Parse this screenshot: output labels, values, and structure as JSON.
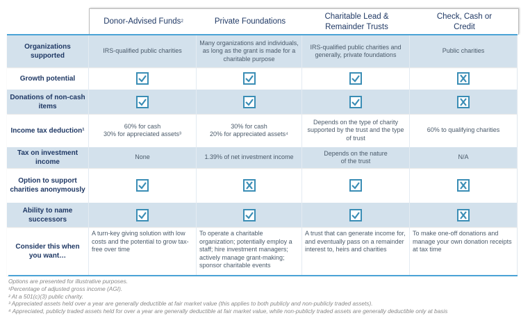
{
  "columns": [
    "Donor-Advised Funds",
    "Private Foundations",
    "Charitable Lead & Remainder Trusts",
    "Check, Cash or Credit"
  ],
  "column_sup": [
    "2",
    "",
    "",
    ""
  ],
  "colors": {
    "accent": "#4aa3d6",
    "shaded_row": "#d3e1ec",
    "label_text": "#1f3864",
    "checkbox": "#3a8db5"
  },
  "rows": [
    {
      "label": "Organizations supported",
      "shaded": true,
      "cells": [
        "IRS-qualified public charities",
        "Many organizations and individuals, as long as the grant is made for a charitable purpose",
        "IRS-qualified public charities and generally, private foundations",
        "Public charities"
      ]
    },
    {
      "label": "Growth potential",
      "shaded": false,
      "cells": [
        "check",
        "check",
        "check",
        "x"
      ]
    },
    {
      "label": "Donations of non-cash items",
      "shaded": true,
      "cells": [
        "check",
        "check",
        "check",
        "x"
      ]
    },
    {
      "label": "Income tax deduction¹",
      "shaded": false,
      "cells": [
        "60% for cash\n30% for appreciated assets³",
        "30% for cash\n20% for appreciated assets⁴",
        "Depends on the type of charity supported by the trust and the type of trust",
        "60% to qualifying charities"
      ]
    },
    {
      "label": "Tax on investment income",
      "shaded": true,
      "cells": [
        "None",
        "1.39% of net investment income",
        "Depends on the nature\nof the trust",
        "N/A"
      ]
    },
    {
      "label": "Option to support charities anonymously",
      "shaded": false,
      "cells": [
        "check",
        "x",
        "check",
        "x"
      ]
    },
    {
      "label": "Ability to name successors",
      "shaded": true,
      "cells": [
        "check",
        "check",
        "check",
        "x"
      ]
    },
    {
      "label": "Consider this when you want…",
      "shaded": false,
      "left": true,
      "cells": [
        "A turn-key giving solution with low costs and the potential to grow tax-free over time",
        "To operate a charitable organization; potentially employ a staff; hire investment managers; actively manage grant-making; sponsor charitable events",
        "A trust that can generate income for, and eventually pass on a remainder interest to, heirs and charities",
        "To make one-off donations and manage your own donation receipts at tax time"
      ]
    }
  ],
  "footnotes": [
    "Options are presented for illustrative purposes.",
    "¹Percentage of adjusted gross income (AGI).",
    "² At a 501(c)(3) public charity.",
    "³ Appreciated assets held over a year are generally deductible at fair market value (this applies to both publicly and non-publicly traded assets).",
    "⁴ Appreciated, publicly traded assets held for over a year are generally deductible at fair market value, while non-publicly traded assets are generally deductible only at basis"
  ]
}
